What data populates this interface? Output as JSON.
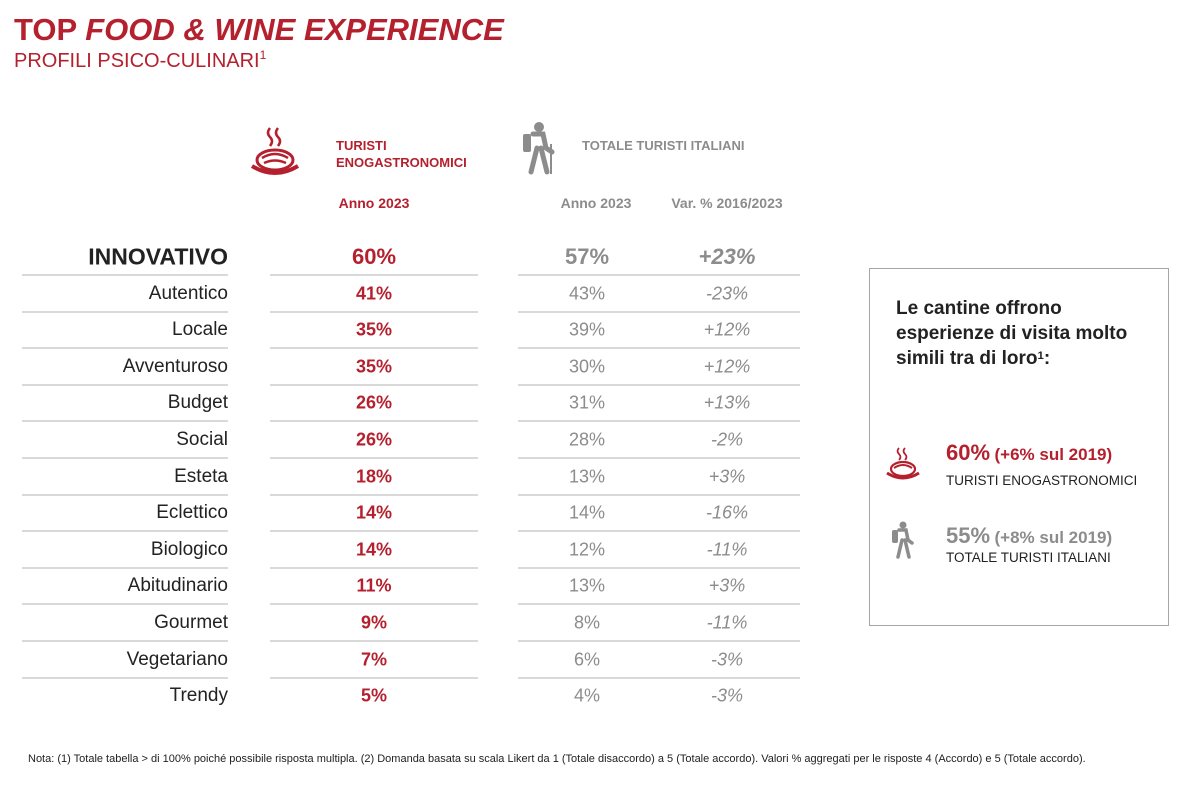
{
  "header": {
    "title_plain": "TOP",
    "title_italic": "FOOD & WINE EXPERIENCE",
    "subtitle": "PROFILI PSICO-CULINARI",
    "subtitle_note": "1"
  },
  "columns": {
    "group_food": "TURISTI ENOGASTRONOMICI",
    "group_total": "TOTALE TURISTI ITALIANI",
    "food_year": "Anno 2023",
    "total_year": "Anno 2023",
    "total_var": "Var. % 2016/2023"
  },
  "table": {
    "rows": [
      [
        "INNOVATIVO",
        "60%",
        "57%",
        "+23%"
      ],
      [
        "Autentico",
        "41%",
        "43%",
        "-23%"
      ],
      [
        "Locale",
        "35%",
        "39%",
        "+12%"
      ],
      [
        "Avventuroso",
        "35%",
        "30%",
        "+12%"
      ],
      [
        "Budget",
        "26%",
        "31%",
        "+13%"
      ],
      [
        "Social",
        "26%",
        "28%",
        "-2%"
      ],
      [
        "Esteta",
        "18%",
        "13%",
        "+3%"
      ],
      [
        "Eclettico",
        "14%",
        "14%",
        "-16%"
      ],
      [
        "Biologico",
        "14%",
        "12%",
        "-11%"
      ],
      [
        "Abitudinario",
        "11%",
        "13%",
        "+3%"
      ],
      [
        "Gourmet",
        "9%",
        "8%",
        "-11%"
      ],
      [
        "Vegetariano",
        "7%",
        "6%",
        "-3%"
      ],
      [
        "Trendy",
        "5%",
        "4%",
        "-3%"
      ]
    ]
  },
  "sidebox": {
    "text": "Le cantine offrono esperienze di visita molto simili tra di loro",
    "note": "1",
    "text_end": ":",
    "stats": [
      {
        "value": "60%",
        "change": "(+6% sul 2019)",
        "label": "TURISTI ENOGASTRONOMICI"
      },
      {
        "value": "55%",
        "change": "(+8% sul 2019)",
        "label": "TOTALE TURISTI ITALIANI"
      }
    ]
  },
  "footnote": "Nota: (1) Totale tabella  > di 100% poiché possibile risposta multipla. (2) Domanda basata su scala Likert da 1 (Totale disaccordo) a 5 (Totale accordo). Valori % aggregati per  le risposte 4 (Accordo) e 5 (Totale accordo)."
}
